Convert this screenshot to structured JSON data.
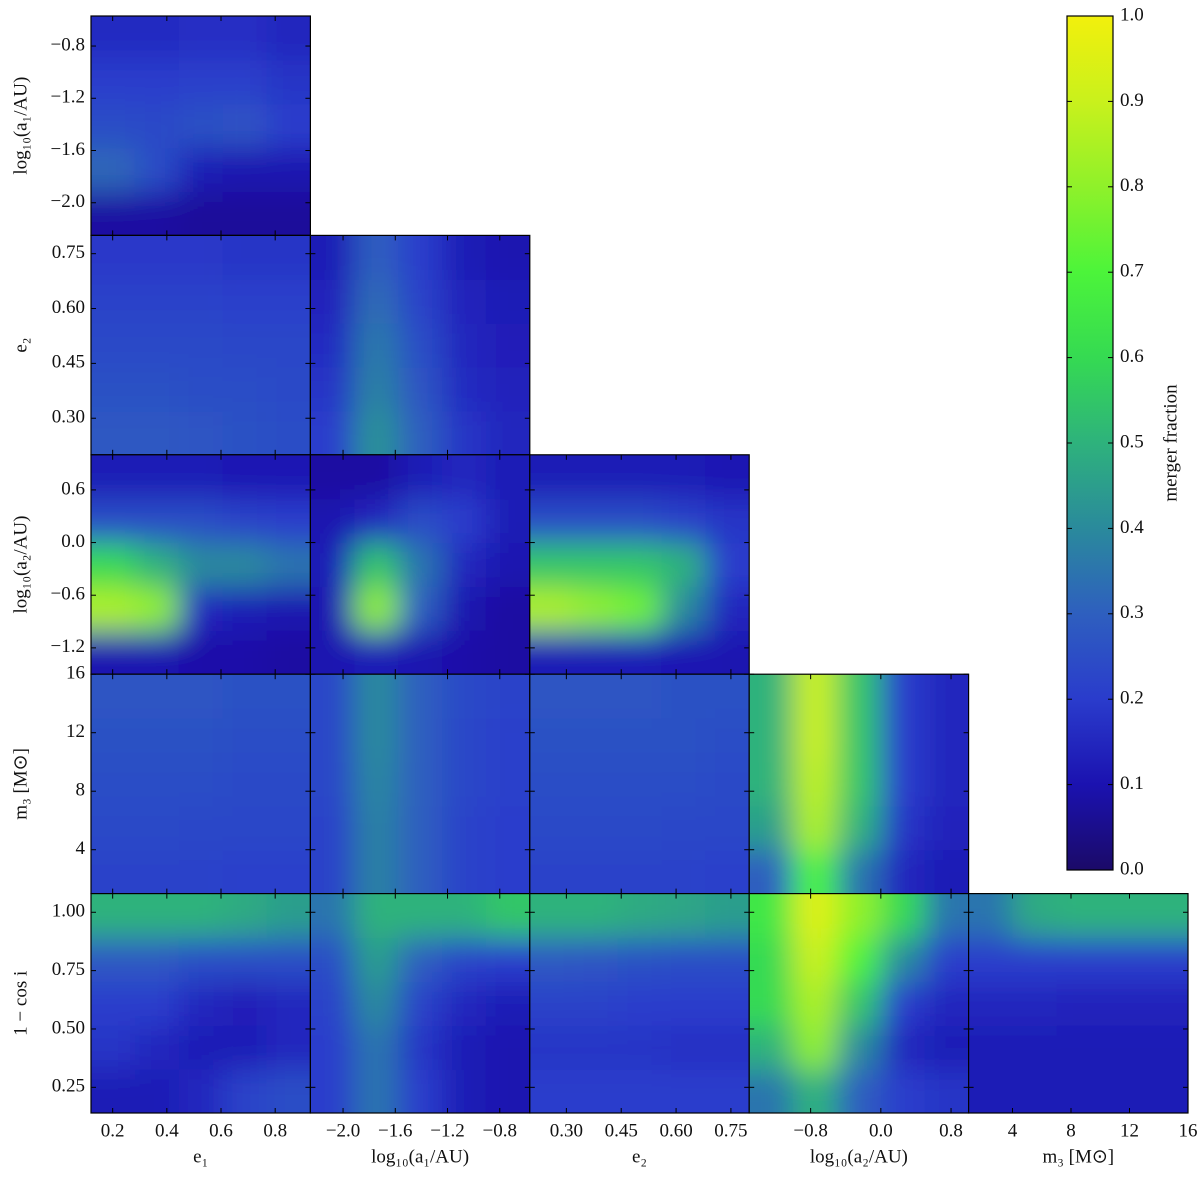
{
  "chart_data": {
    "type": "heatmap",
    "colorbar": {
      "label": "merger fraction",
      "lim": [
        0,
        1
      ],
      "ticks": [
        {
          "value": 0,
          "label": "0.0"
        },
        0.1,
        0.2,
        0.3,
        0.4,
        0.5,
        0.6,
        0.7,
        0.8,
        0.9,
        {
          "value": 1,
          "label": "1.0"
        }
      ],
      "colormap": [
        "#1b0a68",
        "#1b12b0",
        "#2a3ccc",
        "#2e5fbf",
        "#2a8a9c",
        "#2eb27c",
        "#35da52",
        "#4cf43a",
        "#8ff12a",
        "#c9f11c",
        "#f2f00c"
      ]
    },
    "variables": [
      {
        "label": "e₁",
        "lim": [
          0.12,
          0.93
        ],
        "xticks": [
          0.2,
          0.4,
          0.6,
          0.8
        ]
      },
      {
        "label": "log₁₀(a₁/AU)",
        "lim": [
          -2.25,
          -0.57
        ],
        "xticks": [
          {
            "value": -2,
            "label": "−2.0"
          },
          {
            "value": -1.6,
            "label": "−1.6"
          },
          {
            "value": -1.2,
            "label": "−1.2"
          },
          {
            "value": -0.8,
            "label": "−0.8"
          }
        ],
        "yticks": [
          {
            "value": -2,
            "label": "−2.0"
          },
          {
            "value": -1.6,
            "label": "−1.6"
          },
          {
            "value": -1.2,
            "label": "−1.2"
          },
          {
            "value": -0.8,
            "label": "−0.8"
          }
        ]
      },
      {
        "label": "e₂",
        "lim": [
          0.2,
          0.8
        ],
        "xticks": [
          {
            "value": 0.3,
            "label": "0.30"
          },
          0.45,
          {
            "value": 0.6,
            "label": "0.60"
          },
          0.75
        ],
        "yticks": [
          {
            "value": 0.3,
            "label": "0.30"
          },
          0.45,
          {
            "value": 0.6,
            "label": "0.60"
          },
          0.75
        ]
      },
      {
        "label": "log₁₀(a₂/AU)",
        "lim": [
          -1.5,
          1.0
        ],
        "xticks": [
          {
            "value": -0.8,
            "label": "−0.8"
          },
          {
            "value": 0,
            "label": "0.0"
          },
          0.8
        ],
        "yticks": [
          {
            "value": -1.2,
            "label": "−1.2"
          },
          {
            "value": -0.6,
            "label": "−0.6"
          },
          {
            "value": 0,
            "label": "0.0"
          },
          0.6
        ]
      },
      {
        "label": "m₃ [M⊙]",
        "lim": [
          1,
          16
        ],
        "xticks": [
          4,
          8,
          12,
          16
        ],
        "yticks": [
          4,
          8,
          12,
          16
        ]
      },
      {
        "label": "1 − cos i",
        "lim": [
          0.14,
          1.08
        ],
        "yticks": [
          0.25,
          {
            "value": 0.5,
            "label": "0.50"
          },
          0.75,
          {
            "value": 1,
            "label": "1.00"
          }
        ]
      }
    ],
    "panels": [
      [
        [
          [
            0.08,
            0.08,
            0.07,
            0.07,
            0.07
          ],
          [
            0.32,
            0.25,
            0.12,
            0.1,
            0.1
          ],
          [
            0.25,
            0.24,
            0.26,
            0.27,
            0.2
          ],
          [
            0.2,
            0.2,
            0.21,
            0.21,
            0.18
          ],
          [
            0.16,
            0.16,
            0.17,
            0.17,
            0.15
          ]
        ]
      ],
      [
        [
          [
            0.28,
            0.28,
            0.27,
            0.26,
            0.25
          ],
          [
            0.26,
            0.26,
            0.25,
            0.25,
            0.24
          ],
          [
            0.24,
            0.24,
            0.24,
            0.23,
            0.23
          ],
          [
            0.22,
            0.22,
            0.22,
            0.21,
            0.21
          ],
          [
            0.19,
            0.19,
            0.19,
            0.18,
            0.18
          ]
        ],
        [
          [
            0.2,
            0.42,
            0.3,
            0.18,
            0.15
          ],
          [
            0.18,
            0.38,
            0.27,
            0.16,
            0.14
          ],
          [
            0.16,
            0.36,
            0.25,
            0.15,
            0.13
          ],
          [
            0.14,
            0.33,
            0.22,
            0.14,
            0.12
          ],
          [
            0.12,
            0.3,
            0.2,
            0.12,
            0.1
          ]
        ]
      ],
      [
        [
          [
            0.1,
            0.1,
            0.09,
            0.09,
            0.08
          ],
          [
            0.85,
            0.8,
            0.15,
            0.12,
            0.1
          ],
          [
            0.6,
            0.5,
            0.4,
            0.4,
            0.35
          ],
          [
            0.25,
            0.25,
            0.25,
            0.22,
            0.2
          ],
          [
            0.12,
            0.12,
            0.12,
            0.11,
            0.11
          ]
        ],
        [
          [
            0.1,
            0.12,
            0.1,
            0.09,
            0.08
          ],
          [
            0.1,
            0.8,
            0.3,
            0.1,
            0.08
          ],
          [
            0.12,
            0.55,
            0.35,
            0.15,
            0.1
          ],
          [
            0.1,
            0.15,
            0.25,
            0.2,
            0.12
          ],
          [
            0.08,
            0.08,
            0.12,
            0.15,
            0.12
          ]
        ],
        [
          [
            0.12,
            0.12,
            0.12,
            0.11,
            0.1
          ],
          [
            0.85,
            0.8,
            0.75,
            0.4,
            0.15
          ],
          [
            0.55,
            0.55,
            0.55,
            0.5,
            0.2
          ],
          [
            0.25,
            0.25,
            0.25,
            0.22,
            0.18
          ],
          [
            0.12,
            0.12,
            0.12,
            0.12,
            0.11
          ]
        ]
      ],
      [
        [
          [
            0.22,
            0.22,
            0.22,
            0.21,
            0.21
          ],
          [
            0.24,
            0.24,
            0.23,
            0.23,
            0.23
          ],
          [
            0.25,
            0.25,
            0.25,
            0.24,
            0.24
          ],
          [
            0.26,
            0.26,
            0.26,
            0.25,
            0.25
          ],
          [
            0.27,
            0.27,
            0.27,
            0.26,
            0.26
          ]
        ],
        [
          [
            0.22,
            0.38,
            0.3,
            0.22,
            0.2
          ],
          [
            0.22,
            0.38,
            0.3,
            0.22,
            0.2
          ],
          [
            0.23,
            0.39,
            0.3,
            0.23,
            0.21
          ],
          [
            0.23,
            0.4,
            0.3,
            0.23,
            0.21
          ],
          [
            0.23,
            0.4,
            0.3,
            0.24,
            0.22
          ]
        ],
        [
          [
            0.22,
            0.22,
            0.22,
            0.22,
            0.21
          ],
          [
            0.24,
            0.24,
            0.24,
            0.23,
            0.23
          ],
          [
            0.25,
            0.25,
            0.25,
            0.25,
            0.24
          ],
          [
            0.26,
            0.26,
            0.26,
            0.26,
            0.25
          ],
          [
            0.27,
            0.27,
            0.27,
            0.26,
            0.26
          ]
        ],
        [
          [
            0.3,
            0.7,
            0.35,
            0.15,
            0.12
          ],
          [
            0.45,
            0.85,
            0.5,
            0.18,
            0.14
          ],
          [
            0.5,
            0.88,
            0.55,
            0.2,
            0.15
          ],
          [
            0.5,
            0.9,
            0.55,
            0.2,
            0.15
          ],
          [
            0.5,
            0.9,
            0.55,
            0.2,
            0.15
          ]
        ]
      ],
      [
        [
          [
            0.12,
            0.12,
            0.15,
            0.22,
            0.25
          ],
          [
            0.18,
            0.15,
            0.12,
            0.12,
            0.15
          ],
          [
            0.2,
            0.2,
            0.15,
            0.13,
            0.15
          ],
          [
            0.28,
            0.28,
            0.25,
            0.25,
            0.25
          ],
          [
            0.5,
            0.5,
            0.5,
            0.48,
            0.45
          ]
        ],
        [
          [
            0.2,
            0.35,
            0.2,
            0.12,
            0.1
          ],
          [
            0.2,
            0.35,
            0.18,
            0.12,
            0.1
          ],
          [
            0.22,
            0.4,
            0.22,
            0.15,
            0.12
          ],
          [
            0.25,
            0.45,
            0.3,
            0.22,
            0.2
          ],
          [
            0.35,
            0.5,
            0.5,
            0.5,
            0.55
          ]
        ],
        [
          [
            0.2,
            0.2,
            0.2,
            0.2,
            0.2
          ],
          [
            0.18,
            0.18,
            0.18,
            0.17,
            0.17
          ],
          [
            0.22,
            0.22,
            0.2,
            0.2,
            0.2
          ],
          [
            0.28,
            0.27,
            0.26,
            0.25,
            0.25
          ],
          [
            0.5,
            0.5,
            0.48,
            0.47,
            0.45
          ]
        ],
        [
          [
            0.35,
            0.5,
            0.3,
            0.2,
            0.18
          ],
          [
            0.5,
            0.8,
            0.4,
            0.15,
            0.12
          ],
          [
            0.6,
            0.85,
            0.55,
            0.2,
            0.15
          ],
          [
            0.6,
            0.9,
            0.7,
            0.4,
            0.2
          ],
          [
            0.65,
            0.95,
            0.8,
            0.6,
            0.35
          ]
        ],
        [
          [
            0.12,
            0.12,
            0.12,
            0.12,
            0.12
          ],
          [
            0.12,
            0.12,
            0.12,
            0.12,
            0.12
          ],
          [
            0.15,
            0.15,
            0.14,
            0.14,
            0.14
          ],
          [
            0.2,
            0.2,
            0.2,
            0.2,
            0.2
          ],
          [
            0.35,
            0.48,
            0.5,
            0.5,
            0.5
          ]
        ]
      ]
    ]
  }
}
